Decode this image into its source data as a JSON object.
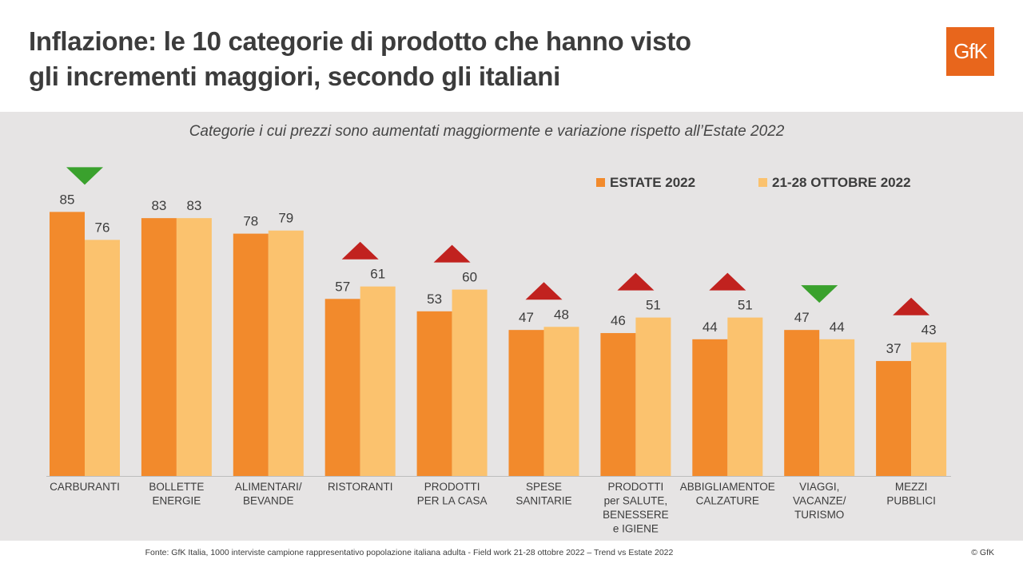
{
  "title": {
    "line1": "Inflazione: le 10 categorie di prodotto che hanno visto",
    "line2": "gli incrementi maggiori, secondo gli italiani"
  },
  "logo_text": "GfK",
  "footer": {
    "source": "Fonte: GfK Italia, 1000 interviste campione rappresentativo popolazione italiana adulta - Field work 21-28 ottobre 2022 – Trend vs Estate 2022",
    "copyright": "© GfK"
  },
  "colors": {
    "series1": "#f28a2c",
    "series2": "#fbc26e",
    "trend_up": "#c1221f",
    "trend_down": "#3aa12d",
    "panel": "#e6e4e4"
  },
  "chart_data": {
    "type": "bar",
    "title": "Categorie i cui prezzi sono aumentati maggiormente e variazione rispetto all’Estate 2022",
    "categories": [
      [
        "CARBURANTI"
      ],
      [
        "BOLLETTE",
        "ENERGIE"
      ],
      [
        "ALIMENTARI/",
        "BEVANDE"
      ],
      [
        "RISTORANTI"
      ],
      [
        "PRODOTTI",
        "PER LA CASA"
      ],
      [
        "SPESE",
        "SANITARIE"
      ],
      [
        "PRODOTTI",
        "per SALUTE,",
        "BENESSERE",
        "e IGIENE"
      ],
      [
        "ABBIGLIAMENTOE",
        "CALZATURE"
      ],
      [
        "VIAGGI,",
        "VACANZE/",
        "TURISMO"
      ],
      [
        "MEZZI",
        "PUBBLICI"
      ]
    ],
    "series": [
      {
        "name": "ESTATE 2022",
        "values": [
          85,
          83,
          78,
          57,
          53,
          47,
          46,
          44,
          47,
          37
        ]
      },
      {
        "name": "21-28 OTTOBRE 2022",
        "values": [
          76,
          83,
          79,
          61,
          60,
          48,
          51,
          51,
          44,
          43
        ]
      }
    ],
    "trend": [
      "down",
      "none",
      "none",
      "up",
      "up",
      "up",
      "up",
      "up",
      "down",
      "up"
    ],
    "ylim": [
      0,
      100
    ],
    "grid": false,
    "legend_position": "top-right"
  }
}
